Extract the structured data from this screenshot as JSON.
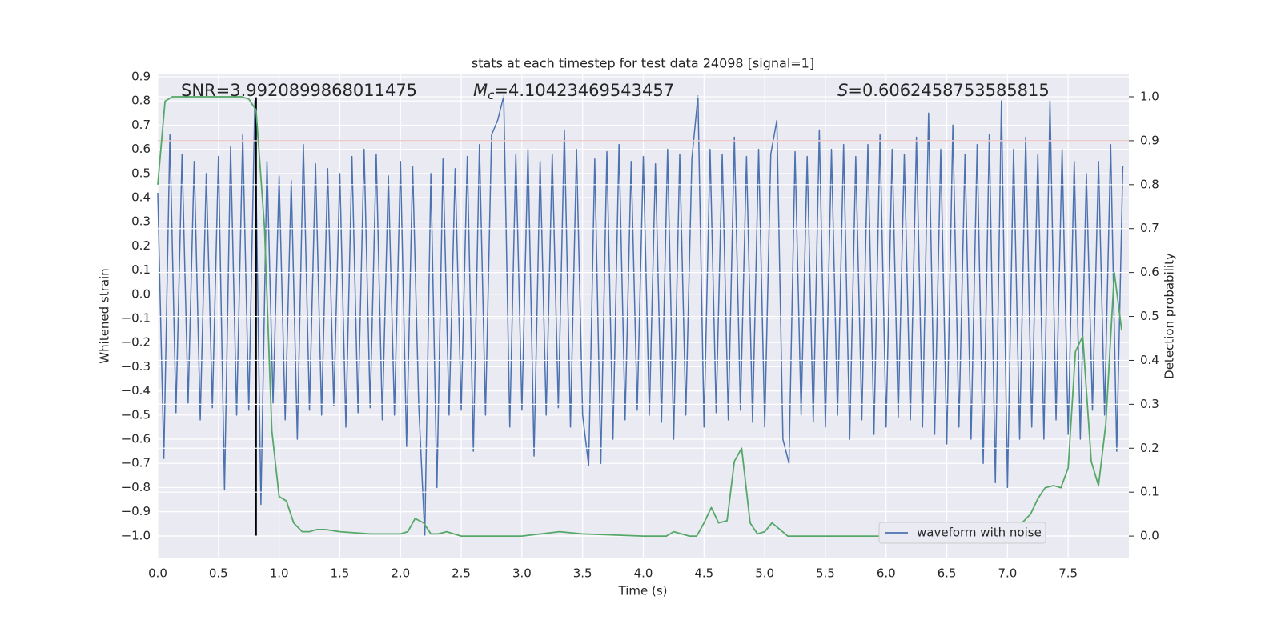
{
  "chart_data": {
    "type": "line",
    "title": "stats at each timestep for test data 24098 [signal=1]",
    "x_label": "Time (s)",
    "y_label": "Whitened strain",
    "y2_label": "Detection probability",
    "annotations": [
      {
        "text": "SNR=3.9920899868011475"
      },
      {
        "symbol": "M",
        "subscript": "c",
        "text": "=4.10423469543457"
      },
      {
        "symbol": "S",
        "text": "=0.6062458753585815"
      }
    ],
    "xlim": [
      0,
      8.0
    ],
    "ylim": [
      -1.09,
      0.91
    ],
    "y2lim": [
      -0.049,
      1.051
    ],
    "xticks": [
      {
        "value": 0,
        "label": "0.0"
      },
      {
        "value": 0.5,
        "label": "0.5"
      },
      {
        "value": 1,
        "label": "1.0"
      },
      {
        "value": 1.5,
        "label": "1.5"
      },
      {
        "value": 2,
        "label": "2.0"
      },
      {
        "value": 2.5,
        "label": "2.5"
      },
      {
        "value": 3,
        "label": "3.0"
      },
      {
        "value": 3.5,
        "label": "3.5"
      },
      {
        "value": 4,
        "label": "4.0"
      },
      {
        "value": 4.5,
        "label": "4.5"
      },
      {
        "value": 5,
        "label": "5.0"
      },
      {
        "value": 5.5,
        "label": "5.5"
      },
      {
        "value": 6,
        "label": "6.0"
      },
      {
        "value": 6.5,
        "label": "6.5"
      },
      {
        "value": 7,
        "label": "7.0"
      },
      {
        "value": 7.5,
        "label": "7.5"
      }
    ],
    "yticks": [
      {
        "value": -1.0,
        "label": "−1.0"
      },
      {
        "value": -0.9,
        "label": "−0.9"
      },
      {
        "value": -0.8,
        "label": "−0.8"
      },
      {
        "value": -0.7,
        "label": "−0.7"
      },
      {
        "value": -0.6,
        "label": "−0.6"
      },
      {
        "value": -0.5,
        "label": "−0.5"
      },
      {
        "value": -0.4,
        "label": "−0.4"
      },
      {
        "value": -0.3,
        "label": "−0.3"
      },
      {
        "value": -0.2,
        "label": "−0.2"
      },
      {
        "value": -0.1,
        "label": "−0.1"
      },
      {
        "value": 0,
        "label": "0.0"
      },
      {
        "value": 0.1,
        "label": "0.1"
      },
      {
        "value": 0.2,
        "label": "0.2"
      },
      {
        "value": 0.3,
        "label": "0.3"
      },
      {
        "value": 0.4,
        "label": "0.4"
      },
      {
        "value": 0.5,
        "label": "0.5"
      },
      {
        "value": 0.6,
        "label": "0.6"
      },
      {
        "value": 0.7,
        "label": "0.7"
      },
      {
        "value": 0.8,
        "label": "0.8"
      },
      {
        "value": 0.9,
        "label": "0.9"
      }
    ],
    "y2ticks": [
      {
        "value": 0,
        "label": "0.0"
      },
      {
        "value": 0.1,
        "label": "0.1"
      },
      {
        "value": 0.2,
        "label": "0.2"
      },
      {
        "value": 0.3,
        "label": "0.3"
      },
      {
        "value": 0.4,
        "label": "0.4"
      },
      {
        "value": 0.5,
        "label": "0.5"
      },
      {
        "value": 0.6,
        "label": "0.6"
      },
      {
        "value": 0.7,
        "label": "0.7"
      },
      {
        "value": 0.8,
        "label": "0.8"
      },
      {
        "value": 0.9,
        "label": "0.9"
      },
      {
        "value": 1,
        "label": "1.0"
      }
    ],
    "grid": true,
    "legend": "lower right",
    "series": [
      {
        "name": "waveform with noise",
        "color": "#4c72b0",
        "x": [
          0,
          0.05,
          0.1,
          0.15,
          0.2,
          0.25,
          0.3,
          0.35,
          0.4,
          0.45,
          0.5,
          0.55,
          0.6,
          0.65,
          0.7,
          0.75,
          0.8,
          0.85,
          0.9,
          0.95,
          1,
          1.05,
          1.1,
          1.15,
          1.2,
          1.25,
          1.3,
          1.35,
          1.4,
          1.45,
          1.5,
          1.55,
          1.6,
          1.65,
          1.7,
          1.75,
          1.8,
          1.85,
          1.9,
          1.95,
          2,
          2.05,
          2.1,
          2.15,
          2.2,
          2.25,
          2.3,
          2.35,
          2.4,
          2.45,
          2.5,
          2.55,
          2.6,
          2.65,
          2.7,
          2.75,
          2.8,
          2.85,
          2.9,
          2.95,
          3,
          3.05,
          3.1,
          3.15,
          3.2,
          3.25,
          3.3,
          3.35,
          3.4,
          3.45,
          3.5,
          3.55,
          3.6,
          3.65,
          3.7,
          3.75,
          3.8,
          3.85,
          3.9,
          3.95,
          4,
          4.05,
          4.1,
          4.15,
          4.2,
          4.25,
          4.3,
          4.35,
          4.4,
          4.45,
          4.5,
          4.55,
          4.6,
          4.65,
          4.7,
          4.75,
          4.8,
          4.85,
          4.9,
          4.95,
          5,
          5.05,
          5.1,
          5.15,
          5.2,
          5.25,
          5.3,
          5.35,
          5.4,
          5.45,
          5.5,
          5.55,
          5.6,
          5.65,
          5.7,
          5.75,
          5.8,
          5.85,
          5.9,
          5.95,
          6,
          6.05,
          6.1,
          6.15,
          6.2,
          6.25,
          6.3,
          6.35,
          6.4,
          6.45,
          6.5,
          6.55,
          6.6,
          6.65,
          6.7,
          6.75,
          6.8,
          6.85,
          6.9,
          6.95,
          7,
          7.05,
          7.1,
          7.15,
          7.2,
          7.25,
          7.3,
          7.35,
          7.4,
          7.45,
          7.5,
          7.55,
          7.6,
          7.65,
          7.7,
          7.75,
          7.8,
          7.85,
          7.9,
          7.95
        ],
        "values": [
          0.42,
          -0.68,
          0.66,
          -0.49,
          0.58,
          -0.45,
          0.55,
          -0.52,
          0.5,
          -0.47,
          0.57,
          -0.81,
          0.61,
          -0.5,
          0.66,
          -0.48,
          0.8,
          -0.87,
          0.55,
          -0.45,
          0.49,
          -0.52,
          0.47,
          -0.6,
          0.62,
          -0.48,
          0.54,
          -0.5,
          0.52,
          -0.46,
          0.5,
          -0.55,
          0.57,
          -0.49,
          0.6,
          -0.47,
          0.58,
          -0.52,
          0.49,
          -0.5,
          0.55,
          -0.63,
          0.53,
          -0.46,
          -1.0,
          0.5,
          -0.8,
          0.56,
          -0.5,
          0.52,
          -0.48,
          0.57,
          -0.65,
          0.62,
          -0.5,
          0.66,
          0.72,
          0.82,
          -0.55,
          0.58,
          -0.48,
          0.6,
          -0.67,
          0.55,
          -0.5,
          0.58,
          -0.47,
          0.68,
          -0.55,
          0.6,
          -0.5,
          -0.71,
          0.56,
          -0.7,
          0.59,
          -0.6,
          0.62,
          -0.52,
          0.55,
          -0.48,
          0.57,
          -0.5,
          0.54,
          -0.53,
          0.6,
          -0.6,
          0.58,
          -0.5,
          0.56,
          0.82,
          -0.55,
          0.6,
          -0.49,
          0.58,
          -0.52,
          0.65,
          -0.48,
          0.57,
          -0.53,
          0.6,
          -0.55,
          0.58,
          0.72,
          -0.6,
          -0.7,
          0.59,
          -0.5,
          0.57,
          -0.53,
          0.68,
          -0.55,
          0.6,
          -0.5,
          0.62,
          -0.6,
          0.57,
          -0.52,
          0.62,
          -0.58,
          0.66,
          -0.55,
          0.6,
          -0.51,
          0.58,
          -0.52,
          0.65,
          -0.55,
          0.75,
          -0.58,
          0.6,
          -0.62,
          0.7,
          -0.55,
          0.58,
          -0.6,
          0.62,
          -0.7,
          0.66,
          -0.78,
          0.8,
          -0.8,
          0.6,
          -0.6,
          0.65,
          -0.55,
          0.58,
          -0.6,
          0.8,
          -0.52,
          0.6,
          -0.58,
          0.55,
          -0.6,
          0.5,
          -0.48,
          0.55,
          -0.5,
          0.62,
          -0.65,
          0.53
        ]
      },
      {
        "color": "#55a868",
        "axis": "y2",
        "x": [
          0,
          0.06,
          0.12,
          0.69,
          0.75,
          0.81,
          0.88,
          0.94,
          1.0,
          1.06,
          1.12,
          1.19,
          1.25,
          1.31,
          1.38,
          1.5,
          1.75,
          2.0,
          2.06,
          2.12,
          2.19,
          2.25,
          2.31,
          2.38,
          2.5,
          3.0,
          3.31,
          3.5,
          4.0,
          4.19,
          4.25,
          4.38,
          4.44,
          4.5,
          4.56,
          4.62,
          4.69,
          4.75,
          4.81,
          4.88,
          4.94,
          5.0,
          5.06,
          5.19,
          5.5,
          6.25,
          6.38,
          6.5,
          6.62,
          6.75,
          7.0,
          7.06,
          7.12,
          7.19,
          7.25,
          7.31,
          7.38,
          7.44,
          7.5,
          7.56,
          7.62,
          7.69,
          7.75,
          7.81,
          7.88,
          7.94
        ],
        "values": [
          0.8,
          0.99,
          1.0,
          1.0,
          0.995,
          0.97,
          0.7,
          0.24,
          0.09,
          0.08,
          0.03,
          0.01,
          0.01,
          0.015,
          0.015,
          0.01,
          0.005,
          0.005,
          0.01,
          0.04,
          0.03,
          0.005,
          0.005,
          0.01,
          0.0,
          0.0,
          0.01,
          0.005,
          0.0,
          0.0,
          0.01,
          0.0,
          0.0,
          0.03,
          0.065,
          0.03,
          0.035,
          0.17,
          0.2,
          0.03,
          0.005,
          0.01,
          0.03,
          0.0,
          0.0,
          0.0,
          0.015,
          0.005,
          0.015,
          0.005,
          0.005,
          0.01,
          0.03,
          0.05,
          0.085,
          0.11,
          0.115,
          0.11,
          0.155,
          0.42,
          0.455,
          0.17,
          0.115,
          0.255,
          0.6,
          0.47
        ]
      }
    ],
    "hlines": [
      {
        "y": 0.9,
        "axis": "y2",
        "color": "#c44e52"
      }
    ],
    "vlines": [
      {
        "x": 0.81,
        "ymin": 0,
        "ymax": 1,
        "axis": "y2",
        "color": "#000000"
      }
    ]
  }
}
